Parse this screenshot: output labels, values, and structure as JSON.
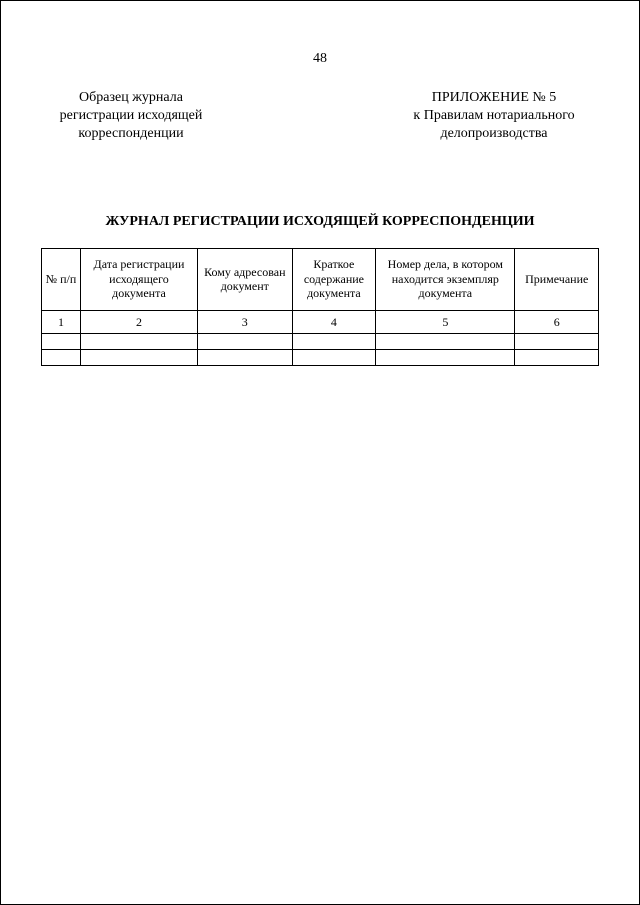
{
  "page_number": "48",
  "header_left": {
    "line1": "Образец журнала",
    "line2": "регистрации исходящей",
    "line3": "корреспонденции"
  },
  "header_right": {
    "line1": "ПРИЛОЖЕНИЕ № 5",
    "line2": "к Правилам нотариального",
    "line3": "делопроизводства"
  },
  "title": "ЖУРНАЛ РЕГИСТРАЦИИ ИСХОДЯЩЕЙ КОРРЕСПОНДЕНЦИИ",
  "table": {
    "headers": [
      "№ п/п",
      "Дата регистрации исходящего документа",
      "Кому адресован документ",
      "Краткое содержание документа",
      "Номер дела, в котором находится экземпляр документа",
      "Примечание"
    ],
    "number_row": [
      "1",
      "2",
      "3",
      "4",
      "5",
      "6"
    ],
    "empty_rows": 2
  }
}
